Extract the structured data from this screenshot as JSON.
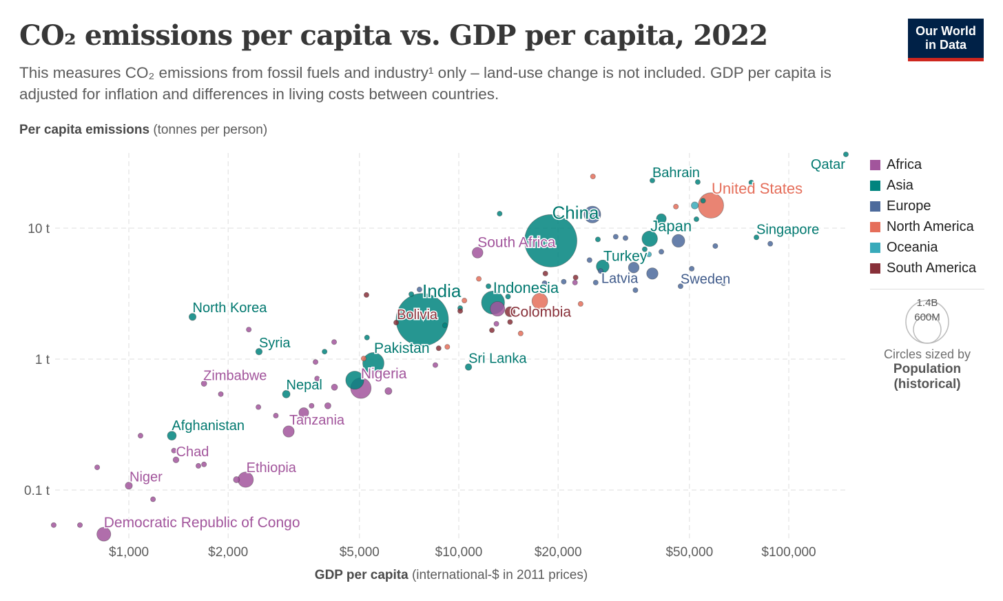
{
  "title": "CO₂ emissions per capita vs. GDP per capita, 2022",
  "subtitle": "This measures CO₂ emissions from fossil fuels and industry¹ only – land-use change is not included. GDP per capita is adjusted for inflation and differences in living costs between countries.",
  "logo": [
    "Our World",
    "in Data"
  ],
  "legend_size": {
    "big": "1.4B",
    "small": "600M",
    "note": "Circles sized by",
    "variable": "Population",
    "variable2": "(historical)"
  },
  "chart_data": {
    "type": "scatter",
    "title": "CO₂ emissions per capita vs. GDP per capita, 2022",
    "ylabel_bold": "Per capita emissions",
    "ylabel_rest": " (tonnes per person)",
    "xlabel_bold": "GDP per capita",
    "xlabel_rest": " (international-$ in 2011 prices)",
    "xscale": "log",
    "yscale": "log",
    "xlim": [
      560,
      150000
    ],
    "ylim": [
      0.04,
      40
    ],
    "xticks": [
      {
        "v": 1000,
        "label": "$1,000"
      },
      {
        "v": 2000,
        "label": "$2,000"
      },
      {
        "v": 5000,
        "label": "$5,000"
      },
      {
        "v": 10000,
        "label": "$10,000"
      },
      {
        "v": 20000,
        "label": "$20,000"
      },
      {
        "v": 50000,
        "label": "$50,000"
      },
      {
        "v": 100000,
        "label": "$100,000"
      }
    ],
    "yticks": [
      {
        "v": 0.1,
        "label": "0.1 t"
      },
      {
        "v": 1,
        "label": "1 t"
      },
      {
        "v": 10,
        "label": "10 t"
      }
    ],
    "grid": true,
    "legend_position": "right",
    "regions": [
      {
        "name": "Africa",
        "color": "#a2559c"
      },
      {
        "name": "Asia",
        "color": "#00847e"
      },
      {
        "name": "Europe",
        "color": "#4c6a9c"
      },
      {
        "name": "North America",
        "color": "#e56e5a"
      },
      {
        "name": "Oceania",
        "color": "#38aaba"
      },
      {
        "name": "South America",
        "color": "#883039"
      }
    ],
    "size_by": "Population (historical)",
    "points": [
      {
        "label": "Qatar",
        "region": "Asia",
        "gdp": 149000,
        "co2": 36.6,
        "pop": 2700000.0
      },
      {
        "label": "Bahrain",
        "region": "Asia",
        "gdp": 38600,
        "co2": 23.1,
        "pop": 1500000.0
      },
      {
        "label": "United States",
        "region": "North America",
        "gdp": 58100,
        "co2": 14.9,
        "pop": 333000000.0
      },
      {
        "label": "China",
        "region": "Asia",
        "gdp": 19000,
        "co2": 8.0,
        "pop": 1420000000.0
      },
      {
        "label": "Japan",
        "region": "Asia",
        "gdp": 37900,
        "co2": 8.3,
        "pop": 125000000.0
      },
      {
        "label": "Singapore",
        "region": "Asia",
        "gdp": 79800,
        "co2": 8.5,
        "pop": 5600000.0
      },
      {
        "label": "South Africa",
        "region": "Africa",
        "gdp": 11400,
        "co2": 6.5,
        "pop": 60000000.0
      },
      {
        "label": "Turkey",
        "region": "Asia",
        "gdp": 27300,
        "co2": 5.1,
        "pop": 85000000.0
      },
      {
        "label": "Latvia",
        "region": "Europe",
        "gdp": 26900,
        "co2": 4.7,
        "pop": 1900000.0
      },
      {
        "label": "Sweden",
        "region": "Europe",
        "gdp": 47000,
        "co2": 3.6,
        "pop": 10500000.0
      },
      {
        "label": "Indonesia",
        "region": "Asia",
        "gdp": 12700,
        "co2": 2.7,
        "pop": 275000000.0
      },
      {
        "label": "Colombia",
        "region": "South America",
        "gdp": 14300,
        "co2": 2.3,
        "pop": 52000000.0
      },
      {
        "label": "India",
        "region": "Asia",
        "gdp": 7750,
        "co2": 2.0,
        "pop": 1420000000.0
      },
      {
        "label": "Bolivia",
        "region": "South America",
        "gdp": 6460,
        "co2": 1.9,
        "pop": 12000000.0
      },
      {
        "label": "North Korea",
        "region": "Asia",
        "gdp": 1560,
        "co2": 2.1,
        "pop": 26000000.0
      },
      {
        "label": "Syria",
        "region": "Asia",
        "gdp": 2480,
        "co2": 1.14,
        "pop": 22000000.0
      },
      {
        "label": "Pakistan",
        "region": "Asia",
        "gdp": 5510,
        "co2": 0.93,
        "pop": 235000000.0
      },
      {
        "label": "Sri Lanka",
        "region": "Asia",
        "gdp": 10700,
        "co2": 0.87,
        "pop": 22000000.0
      },
      {
        "label": "Nigeria",
        "region": "Africa",
        "gdp": 5050,
        "co2": 0.6,
        "pop": 218000000.0
      },
      {
        "label": "Zimbabwe",
        "region": "Africa",
        "gdp": 1690,
        "co2": 0.65,
        "pop": 16000000.0
      },
      {
        "label": "Nepal",
        "region": "Asia",
        "gdp": 3000,
        "co2": 0.54,
        "pop": 30000000.0
      },
      {
        "label": "Tanzania",
        "region": "Africa",
        "gdp": 3050,
        "co2": 0.28,
        "pop": 65000000.0
      },
      {
        "label": "Afghanistan",
        "region": "Asia",
        "gdp": 1350,
        "co2": 0.26,
        "pop": 41000000.0
      },
      {
        "label": "Chad",
        "region": "Africa",
        "gdp": 1390,
        "co2": 0.17,
        "pop": 18000000.0
      },
      {
        "label": "Ethiopia",
        "region": "Africa",
        "gdp": 2260,
        "co2": 0.12,
        "pop": 123000000.0
      },
      {
        "label": "Niger",
        "region": "Africa",
        "gdp": 1000,
        "co2": 0.108,
        "pop": 26000000.0
      },
      {
        "label": "Democratic Republic of Congo",
        "region": "Africa",
        "gdp": 840,
        "co2": 0.046,
        "pop": 100000000.0
      },
      {
        "region": "Africa",
        "gdp": 592,
        "co2": 0.054
      },
      {
        "region": "Africa",
        "gdp": 711,
        "co2": 0.054
      },
      {
        "region": "Africa",
        "gdp": 802,
        "co2": 0.149
      },
      {
        "region": "Africa",
        "gdp": 1085,
        "co2": 0.26
      },
      {
        "region": "Africa",
        "gdp": 1184,
        "co2": 0.085
      },
      {
        "region": "Africa",
        "gdp": 1370,
        "co2": 0.2
      },
      {
        "region": "Africa",
        "gdp": 1625,
        "co2": 0.153
      },
      {
        "region": "Africa",
        "gdp": 1690,
        "co2": 0.157
      },
      {
        "region": "Africa",
        "gdp": 1900,
        "co2": 0.54
      },
      {
        "region": "Africa",
        "gdp": 2120,
        "co2": 0.12,
        "pop": 20000000.0
      },
      {
        "region": "Africa",
        "gdp": 2310,
        "co2": 1.68
      },
      {
        "region": "Africa",
        "gdp": 2470,
        "co2": 0.43
      },
      {
        "region": "Africa",
        "gdp": 2790,
        "co2": 0.37
      },
      {
        "region": "Africa",
        "gdp": 3390,
        "co2": 0.39,
        "pop": 50000000.0
      },
      {
        "region": "Africa",
        "gdp": 3580,
        "co2": 0.44
      },
      {
        "region": "Africa",
        "gdp": 4010,
        "co2": 0.44,
        "pop": 20000000.0
      },
      {
        "region": "Africa",
        "gdp": 3680,
        "co2": 0.95
      },
      {
        "region": "Africa",
        "gdp": 3720,
        "co2": 0.71
      },
      {
        "region": "Africa",
        "gdp": 4190,
        "co2": 1.35
      },
      {
        "region": "Africa",
        "gdp": 4200,
        "co2": 0.61,
        "pop": 20000000.0
      },
      {
        "region": "Africa",
        "gdp": 6120,
        "co2": 0.57,
        "pop": 25000000.0
      },
      {
        "region": "Africa",
        "gdp": 8490,
        "co2": 0.9
      },
      {
        "region": "Africa",
        "gdp": 13100,
        "co2": 2.42,
        "pop": 110000000.0
      },
      {
        "region": "Africa",
        "gdp": 13000,
        "co2": 1.86
      },
      {
        "region": "Africa",
        "gdp": 22500,
        "co2": 3.84
      },
      {
        "region": "Asia",
        "gdp": 3920,
        "co2": 1.14
      },
      {
        "region": "Asia",
        "gdp": 5270,
        "co2": 1.46
      },
      {
        "region": "Asia",
        "gdp": 4840,
        "co2": 0.69,
        "pop": 170000000.0
      },
      {
        "region": "Asia",
        "gdp": 9080,
        "co2": 1.81
      },
      {
        "region": "Asia",
        "gdp": 7180,
        "co2": 3.13
      },
      {
        "region": "Asia",
        "gdp": 13300,
        "co2": 12.9
      },
      {
        "region": "Asia",
        "gdp": 26400,
        "co2": 8.2
      },
      {
        "region": "Asia",
        "gdp": 41100,
        "co2": 11.8,
        "pop": 50000000.0
      },
      {
        "region": "Asia",
        "gdp": 53000,
        "co2": 22.5
      },
      {
        "region": "Asia",
        "gdp": 55000,
        "co2": 16.2
      },
      {
        "region": "Asia",
        "gdp": 77000,
        "co2": 22.3
      },
      {
        "region": "Asia",
        "gdp": 52500,
        "co2": 11.7
      },
      {
        "region": "Asia",
        "gdp": 14100,
        "co2": 3.0
      },
      {
        "region": "Asia",
        "gdp": 12300,
        "co2": 3.6
      },
      {
        "region": "Asia",
        "gdp": 10100,
        "co2": 2.45
      },
      {
        "region": "Asia",
        "gdp": 36600,
        "co2": 6.9
      },
      {
        "region": "Europe",
        "gdp": 7600,
        "co2": 3.4
      },
      {
        "region": "Europe",
        "gdp": 25400,
        "co2": 12.7,
        "pop": 145000000.0
      },
      {
        "region": "Europe",
        "gdp": 32000,
        "co2": 8.4
      },
      {
        "region": "Europe",
        "gdp": 46300,
        "co2": 8.0,
        "pop": 84000000.0
      },
      {
        "region": "Europe",
        "gdp": 38600,
        "co2": 4.5,
        "pop": 67000000.0
      },
      {
        "region": "Europe",
        "gdp": 33900,
        "co2": 5.0,
        "pop": 59000000.0
      },
      {
        "region": "Europe",
        "gdp": 87900,
        "co2": 7.6
      },
      {
        "region": "Europe",
        "gdp": 59900,
        "co2": 7.3
      },
      {
        "region": "Europe",
        "gdp": 41100,
        "co2": 6.6
      },
      {
        "region": "Europe",
        "gdp": 24900,
        "co2": 5.7
      },
      {
        "region": "Europe",
        "gdp": 26000,
        "co2": 3.84
      },
      {
        "region": "Europe",
        "gdp": 34300,
        "co2": 3.36
      },
      {
        "region": "Europe",
        "gdp": 63400,
        "co2": 3.8
      },
      {
        "region": "Europe",
        "gdp": 50800,
        "co2": 4.9
      },
      {
        "region": "Europe",
        "gdp": 29900,
        "co2": 8.6
      },
      {
        "region": "Europe",
        "gdp": 18200,
        "co2": 3.8
      },
      {
        "region": "Europe",
        "gdp": 20800,
        "co2": 3.9
      },
      {
        "region": "North America",
        "gdp": 25500,
        "co2": 24.8
      },
      {
        "region": "North America",
        "gdp": 45500,
        "co2": 14.6
      },
      {
        "region": "North America",
        "gdp": 11500,
        "co2": 4.1
      },
      {
        "region": "North America",
        "gdp": 10400,
        "co2": 2.8
      },
      {
        "region": "North America",
        "gdp": 17600,
        "co2": 2.77,
        "pop": 128000000.0
      },
      {
        "region": "North America",
        "gdp": 15400,
        "co2": 1.57
      },
      {
        "region": "North America",
        "gdp": 23400,
        "co2": 2.64
      },
      {
        "region": "North America",
        "gdp": 9230,
        "co2": 1.24
      },
      {
        "region": "North America",
        "gdp": 5150,
        "co2": 1.01
      },
      {
        "region": "Oceania",
        "gdp": 51900,
        "co2": 14.9,
        "pop": 26000000.0
      },
      {
        "region": "Oceania",
        "gdp": 37700,
        "co2": 6.3
      },
      {
        "region": "South America",
        "gdp": 5250,
        "co2": 3.09
      },
      {
        "region": "South America",
        "gdp": 10100,
        "co2": 2.33
      },
      {
        "region": "South America",
        "gdp": 12600,
        "co2": 1.66
      },
      {
        "region": "South America",
        "gdp": 14300,
        "co2": 1.92
      },
      {
        "region": "South America",
        "gdp": 18300,
        "co2": 4.5
      },
      {
        "region": "South America",
        "gdp": 22600,
        "co2": 4.2
      },
      {
        "region": "South America",
        "gdp": 8690,
        "co2": 1.21
      }
    ]
  }
}
